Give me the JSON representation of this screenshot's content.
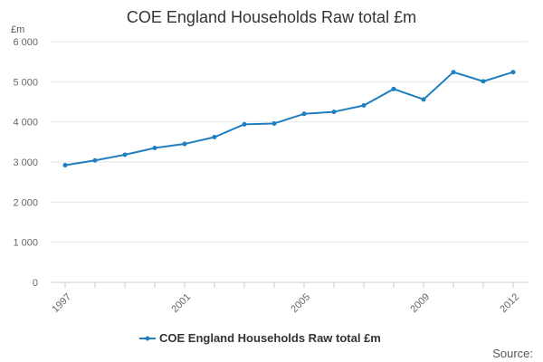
{
  "chart_data": {
    "type": "line",
    "title": "COE England Households Raw total £m",
    "ylabel": "£m",
    "xlabel": "",
    "x": [
      1997,
      1998,
      1999,
      2000,
      2001,
      2002,
      2003,
      2004,
      2005,
      2006,
      2007,
      2008,
      2009,
      2010,
      2011,
      2012
    ],
    "xticks": [
      1997,
      2001,
      2005,
      2009,
      2012
    ],
    "xtick_labels": [
      "1997",
      "2001",
      "2005",
      "2009",
      "2012"
    ],
    "ylim": [
      0,
      6000
    ],
    "yticks": [
      0,
      1000,
      2000,
      3000,
      4000,
      5000,
      6000
    ],
    "ytick_labels": [
      "0",
      "1 000",
      "2 000",
      "3 000",
      "4 000",
      "5 000",
      "6 000"
    ],
    "grid": true,
    "legend_position": "bottom-center",
    "series": [
      {
        "name": "COE England Households Raw total £m",
        "color": "#1f7fc0",
        "values": [
          2920,
          3040,
          3180,
          3350,
          3450,
          3620,
          3940,
          3960,
          4200,
          4250,
          4410,
          4820,
          4560,
          5240,
          5010,
          5240
        ]
      }
    ]
  },
  "footer": {
    "source_label": "Source:"
  }
}
